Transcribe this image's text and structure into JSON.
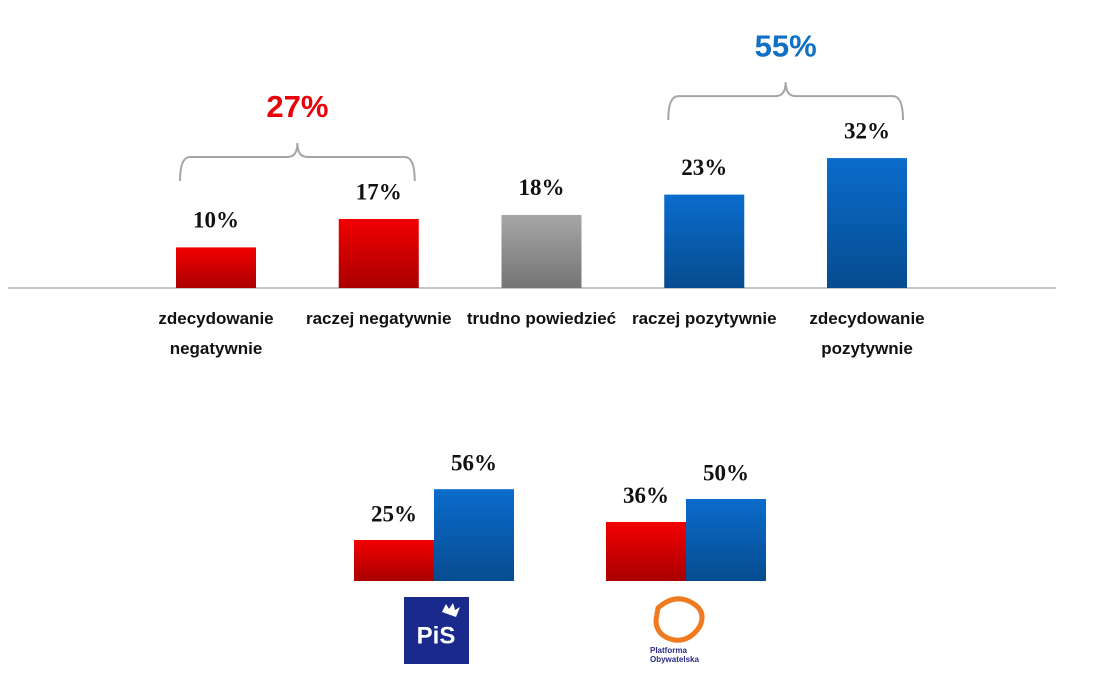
{
  "chart_data": [
    {
      "type": "bar",
      "categories": [
        "zdecydowanie negatywnie",
        "raczej negatywnie",
        "trudno powiedzieć",
        "raczej pozytywnie",
        "zdecydowanie pozytywnie"
      ],
      "values": [
        10,
        17,
        18,
        23,
        32
      ],
      "value_labels": [
        "10%",
        "17%",
        "18%",
        "23%",
        "32%"
      ],
      "colors": [
        "#f20000",
        "#f20000",
        "#a6a6a6",
        "#0a6ccc",
        "#0a6ccc"
      ],
      "annotations": [
        {
          "label": "27%",
          "span": [
            0,
            1
          ],
          "color": "#e8000b"
        },
        {
          "label": "55%",
          "span": [
            3,
            4
          ],
          "color": "#1070c4"
        }
      ]
    },
    {
      "type": "grouped_bar",
      "categories": [
        "PiS",
        "Platforma Obywatelska"
      ],
      "series": [
        {
          "color": "#f20000",
          "values": [
            25,
            36
          ],
          "value_labels": [
            "25%",
            "36%"
          ]
        },
        {
          "color": "#0a6ccc",
          "values": [
            56,
            50
          ],
          "value_labels": [
            "56%",
            "50%"
          ]
        }
      ]
    }
  ]
}
